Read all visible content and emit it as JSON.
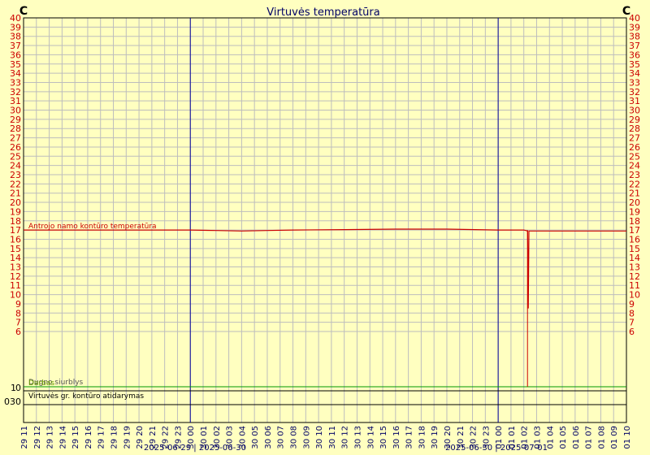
{
  "chart_data": {
    "type": "line",
    "title": "Virtuvės temperatūra",
    "unit_left": "C",
    "unit_right": "C",
    "ylim": [
      6,
      40
    ],
    "y_ticks": [
      6,
      7,
      8,
      9,
      10,
      11,
      12,
      13,
      14,
      15,
      16,
      17,
      18,
      19,
      20,
      21,
      22,
      23,
      24,
      25,
      26,
      27,
      28,
      29,
      30,
      31,
      32,
      33,
      34,
      35,
      36,
      37,
      38,
      39,
      40
    ],
    "x_ticks": [
      "29 11",
      "29 12",
      "29 13",
      "29 14",
      "29 15",
      "29 16",
      "29 17",
      "29 18",
      "29 19",
      "29 20",
      "29 21",
      "29 22",
      "29 23",
      "30 00",
      "30 01",
      "30 02",
      "30 03",
      "30 04",
      "30 05",
      "30 06",
      "30 07",
      "30 08",
      "30 09",
      "30 10",
      "30 11",
      "30 12",
      "30 13",
      "30 14",
      "30 15",
      "30 16",
      "30 17",
      "30 18",
      "30 19",
      "30 20",
      "30 21",
      "30 22",
      "30 23",
      "01 00",
      "01 01",
      "01 02",
      "01 03",
      "01 04",
      "01 05",
      "01 06",
      "01 07",
      "01 08",
      "01 09",
      "01 10"
    ],
    "day_separators": [
      {
        "tick": "30 00",
        "label": "2025-06-29 | 2025-06-30"
      },
      {
        "tick": "01 00",
        "label": "2025-06-30 | 2025-07-01"
      }
    ],
    "grid": true,
    "series": [
      {
        "name": "Antrojo namo kontūro temperatūra",
        "color": "#cc0000",
        "points": [
          {
            "t": 11.0,
            "v": 17.0
          },
          {
            "t": 24.0,
            "v": 17.0
          },
          {
            "t": 26.0,
            "v": 16.95
          },
          {
            "t": 28.0,
            "v": 16.9
          },
          {
            "t": 30.0,
            "v": 16.95
          },
          {
            "t": 32.0,
            "v": 17.0
          },
          {
            "t": 36.0,
            "v": 17.05
          },
          {
            "t": 40.0,
            "v": 17.1
          },
          {
            "t": 44.0,
            "v": 17.1
          },
          {
            "t": 48.0,
            "v": 17.0
          },
          {
            "t": 50.0,
            "v": 17.0
          },
          {
            "t": 50.3,
            "v": 16.9
          },
          {
            "t": 50.35,
            "v": 8.5
          },
          {
            "t": 50.4,
            "v": 16.9
          },
          {
            "t": 52.0,
            "v": 16.9
          },
          {
            "t": 58.0,
            "v": 16.9
          }
        ]
      }
    ],
    "binary_channels": [
      {
        "label": "Dugno siurblys",
        "overlap_label": "Darbas",
        "color": "#009900",
        "ticks": [
          "0",
          "1"
        ],
        "state": 1
      },
      {
        "label": "Virtuvės gr. kontūro atidarymas",
        "color": "#000000",
        "ticks": [
          "0",
          "30"
        ],
        "state": 0
      }
    ]
  }
}
